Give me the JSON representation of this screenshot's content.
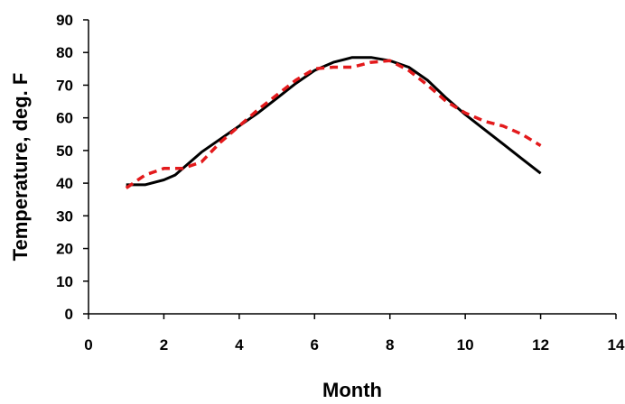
{
  "chart_data": {
    "type": "line",
    "title": "",
    "xlabel": "Month",
    "ylabel": "Temperature, deg. F",
    "xlim": [
      0,
      14
    ],
    "ylim": [
      0,
      90
    ],
    "x_ticks": [
      0,
      2,
      4,
      6,
      8,
      10,
      12,
      14
    ],
    "y_ticks": [
      0,
      10,
      20,
      30,
      40,
      50,
      60,
      70,
      80,
      90
    ],
    "grid": false,
    "legend": "none",
    "series": [
      {
        "style": "solid",
        "color": "#000000",
        "points": [
          [
            1.0,
            39.5
          ],
          [
            1.5,
            39.5
          ],
          [
            2.0,
            41.0
          ],
          [
            2.3,
            42.5
          ],
          [
            2.7,
            46.5
          ],
          [
            3.0,
            49.5
          ],
          [
            3.5,
            53.5
          ],
          [
            4.0,
            57.5
          ],
          [
            4.5,
            61.5
          ],
          [
            5.0,
            66.0
          ],
          [
            5.5,
            70.5
          ],
          [
            6.0,
            74.5
          ],
          [
            6.5,
            77.0
          ],
          [
            7.0,
            78.5
          ],
          [
            7.5,
            78.5
          ],
          [
            8.0,
            77.5
          ],
          [
            8.5,
            75.5
          ],
          [
            9.0,
            71.5
          ],
          [
            9.5,
            66.0
          ],
          [
            10.0,
            61.0
          ],
          [
            10.5,
            56.5
          ],
          [
            11.0,
            52.0
          ],
          [
            11.5,
            47.5
          ],
          [
            12.0,
            43.0
          ]
        ]
      },
      {
        "style": "dashed",
        "color": "#e31a1c",
        "points": [
          [
            1.0,
            38.5
          ],
          [
            1.5,
            42.5
          ],
          [
            2.0,
            44.5
          ],
          [
            2.5,
            44.5
          ],
          [
            3.0,
            46.5
          ],
          [
            3.5,
            52.5
          ],
          [
            4.0,
            57.5
          ],
          [
            4.5,
            62.5
          ],
          [
            5.0,
            67.0
          ],
          [
            5.5,
            71.5
          ],
          [
            6.0,
            75.0
          ],
          [
            6.5,
            75.5
          ],
          [
            7.0,
            75.5
          ],
          [
            7.5,
            77.0
          ],
          [
            8.0,
            77.5
          ],
          [
            8.5,
            74.5
          ],
          [
            9.0,
            70.0
          ],
          [
            9.5,
            65.0
          ],
          [
            10.0,
            61.5
          ],
          [
            10.5,
            59.0
          ],
          [
            11.0,
            57.5
          ],
          [
            11.5,
            55.0
          ],
          [
            12.0,
            51.5
          ]
        ]
      }
    ]
  }
}
